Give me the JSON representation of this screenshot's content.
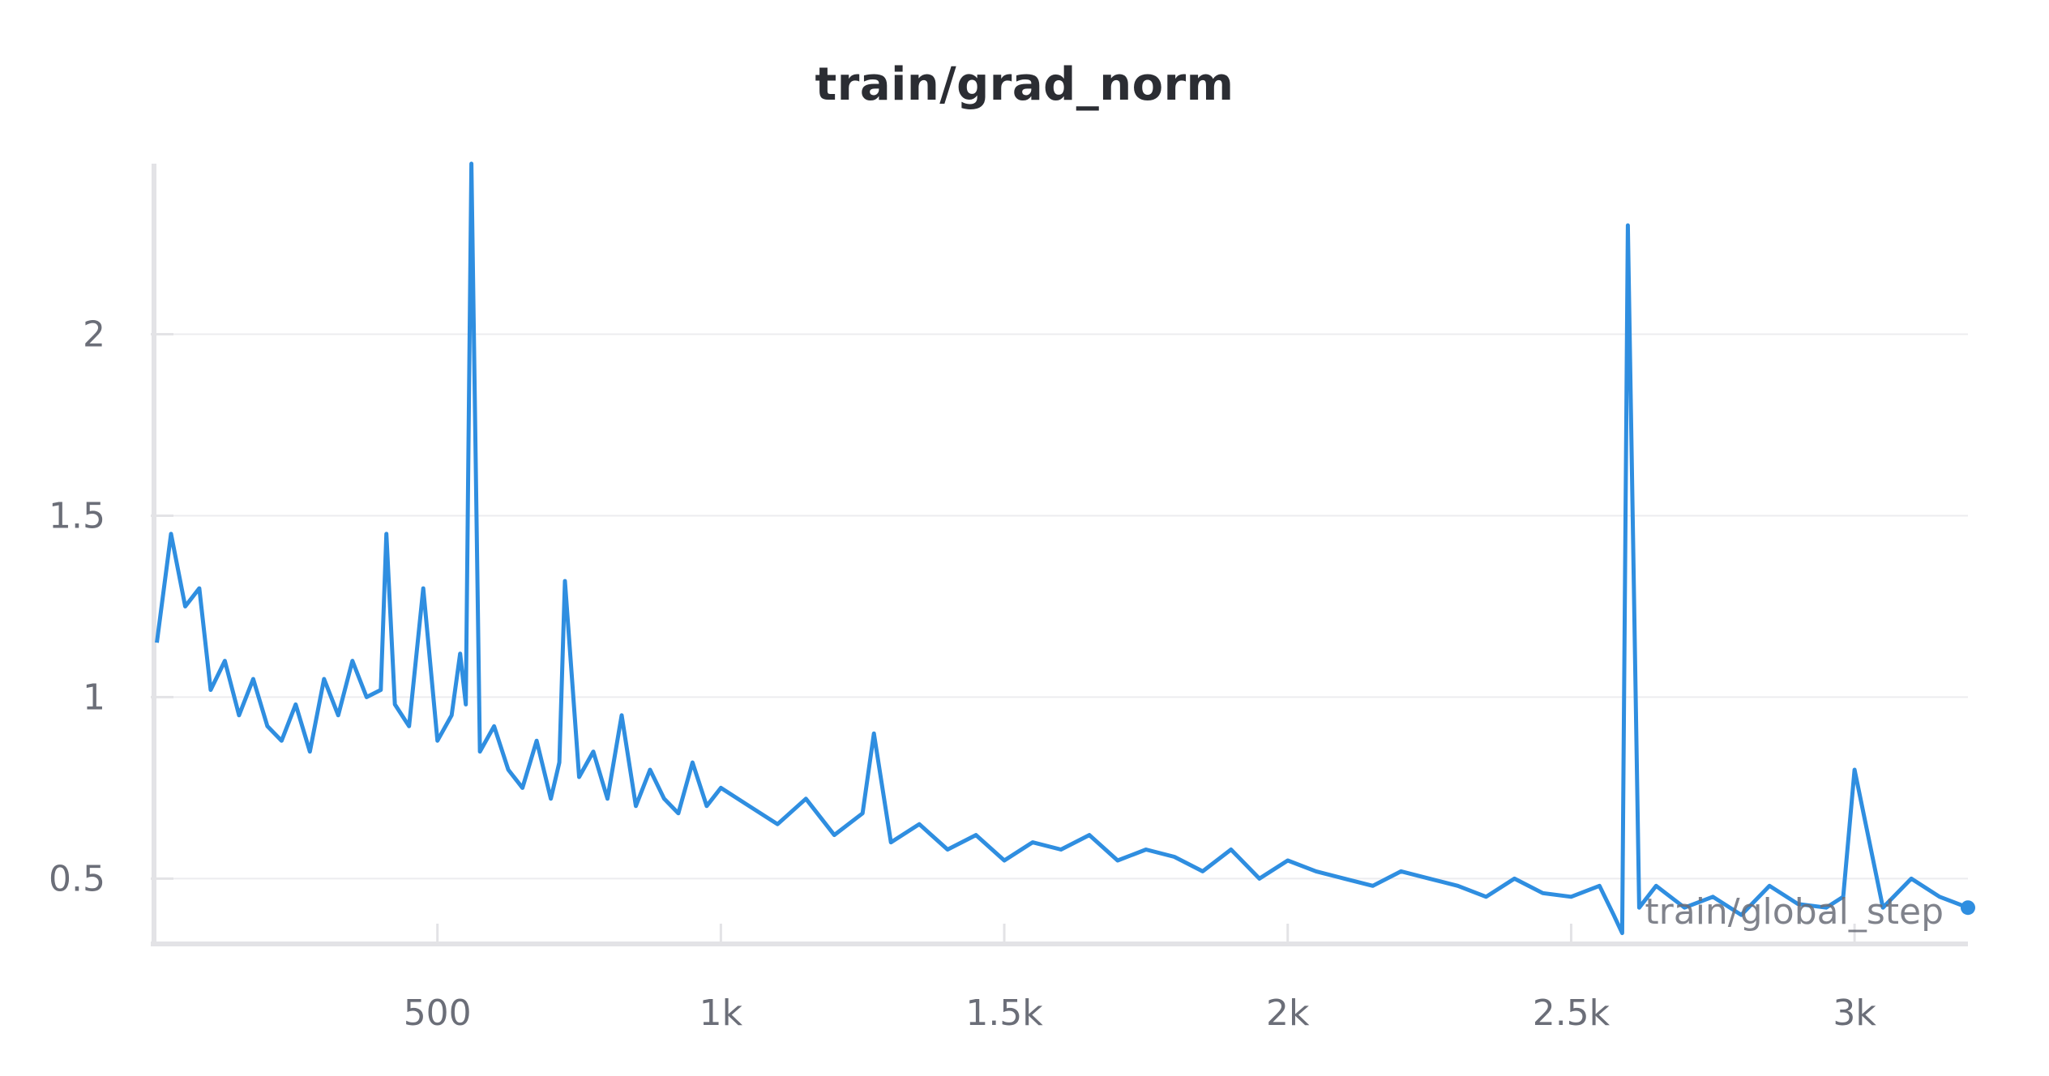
{
  "chart_data": {
    "type": "line",
    "title": "train/grad_norm",
    "xlabel": "train/global_step",
    "ylabel": "",
    "xlim": [
      0,
      3200
    ],
    "ylim": [
      0.32,
      2.47
    ],
    "x_ticks": [
      500,
      1000,
      1500,
      2000,
      2500,
      3000
    ],
    "x_tick_labels": [
      "500",
      "1k",
      "1.5k",
      "2k",
      "2.5k",
      "3k"
    ],
    "y_ticks": [
      0.5,
      1,
      1.5,
      2
    ],
    "y_tick_labels": [
      "0.5",
      "1",
      "1.5",
      "2"
    ],
    "grid": "horizontal",
    "series": [
      {
        "color": "#2f8ee0",
        "x": [
          5,
          30,
          55,
          80,
          100,
          125,
          150,
          175,
          200,
          225,
          250,
          275,
          300,
          325,
          350,
          375,
          400,
          410,
          425,
          450,
          475,
          500,
          525,
          540,
          550,
          560,
          575,
          600,
          625,
          650,
          675,
          700,
          715,
          725,
          750,
          775,
          800,
          825,
          850,
          875,
          900,
          925,
          950,
          975,
          1000,
          1050,
          1100,
          1150,
          1200,
          1250,
          1270,
          1300,
          1350,
          1400,
          1450,
          1500,
          1550,
          1600,
          1650,
          1700,
          1750,
          1800,
          1850,
          1900,
          1950,
          2000,
          2050,
          2100,
          2150,
          2200,
          2250,
          2300,
          2350,
          2400,
          2450,
          2500,
          2550,
          2575,
          2590,
          2600,
          2620,
          2650,
          2700,
          2750,
          2800,
          2850,
          2900,
          2950,
          2980,
          3000,
          3050,
          3100,
          3150,
          3200
        ],
        "y": [
          1.15,
          1.45,
          1.25,
          1.3,
          1.02,
          1.1,
          0.95,
          1.05,
          0.92,
          0.88,
          0.98,
          0.85,
          1.05,
          0.95,
          1.1,
          1.0,
          1.02,
          1.45,
          0.98,
          0.92,
          1.3,
          0.88,
          0.95,
          1.12,
          0.98,
          2.47,
          0.85,
          0.92,
          0.8,
          0.75,
          0.88,
          0.72,
          0.82,
          1.32,
          0.78,
          0.85,
          0.72,
          0.95,
          0.7,
          0.8,
          0.72,
          0.68,
          0.82,
          0.7,
          0.75,
          0.7,
          0.65,
          0.72,
          0.62,
          0.68,
          0.9,
          0.6,
          0.65,
          0.58,
          0.62,
          0.55,
          0.6,
          0.58,
          0.62,
          0.55,
          0.58,
          0.56,
          0.52,
          0.58,
          0.5,
          0.55,
          0.52,
          0.5,
          0.48,
          0.52,
          0.5,
          0.48,
          0.45,
          0.5,
          0.46,
          0.45,
          0.48,
          0.4,
          0.35,
          2.3,
          0.42,
          0.48,
          0.42,
          0.45,
          0.4,
          0.48,
          0.43,
          0.42,
          0.45,
          0.8,
          0.42,
          0.5,
          0.45,
          0.42
        ]
      }
    ]
  }
}
